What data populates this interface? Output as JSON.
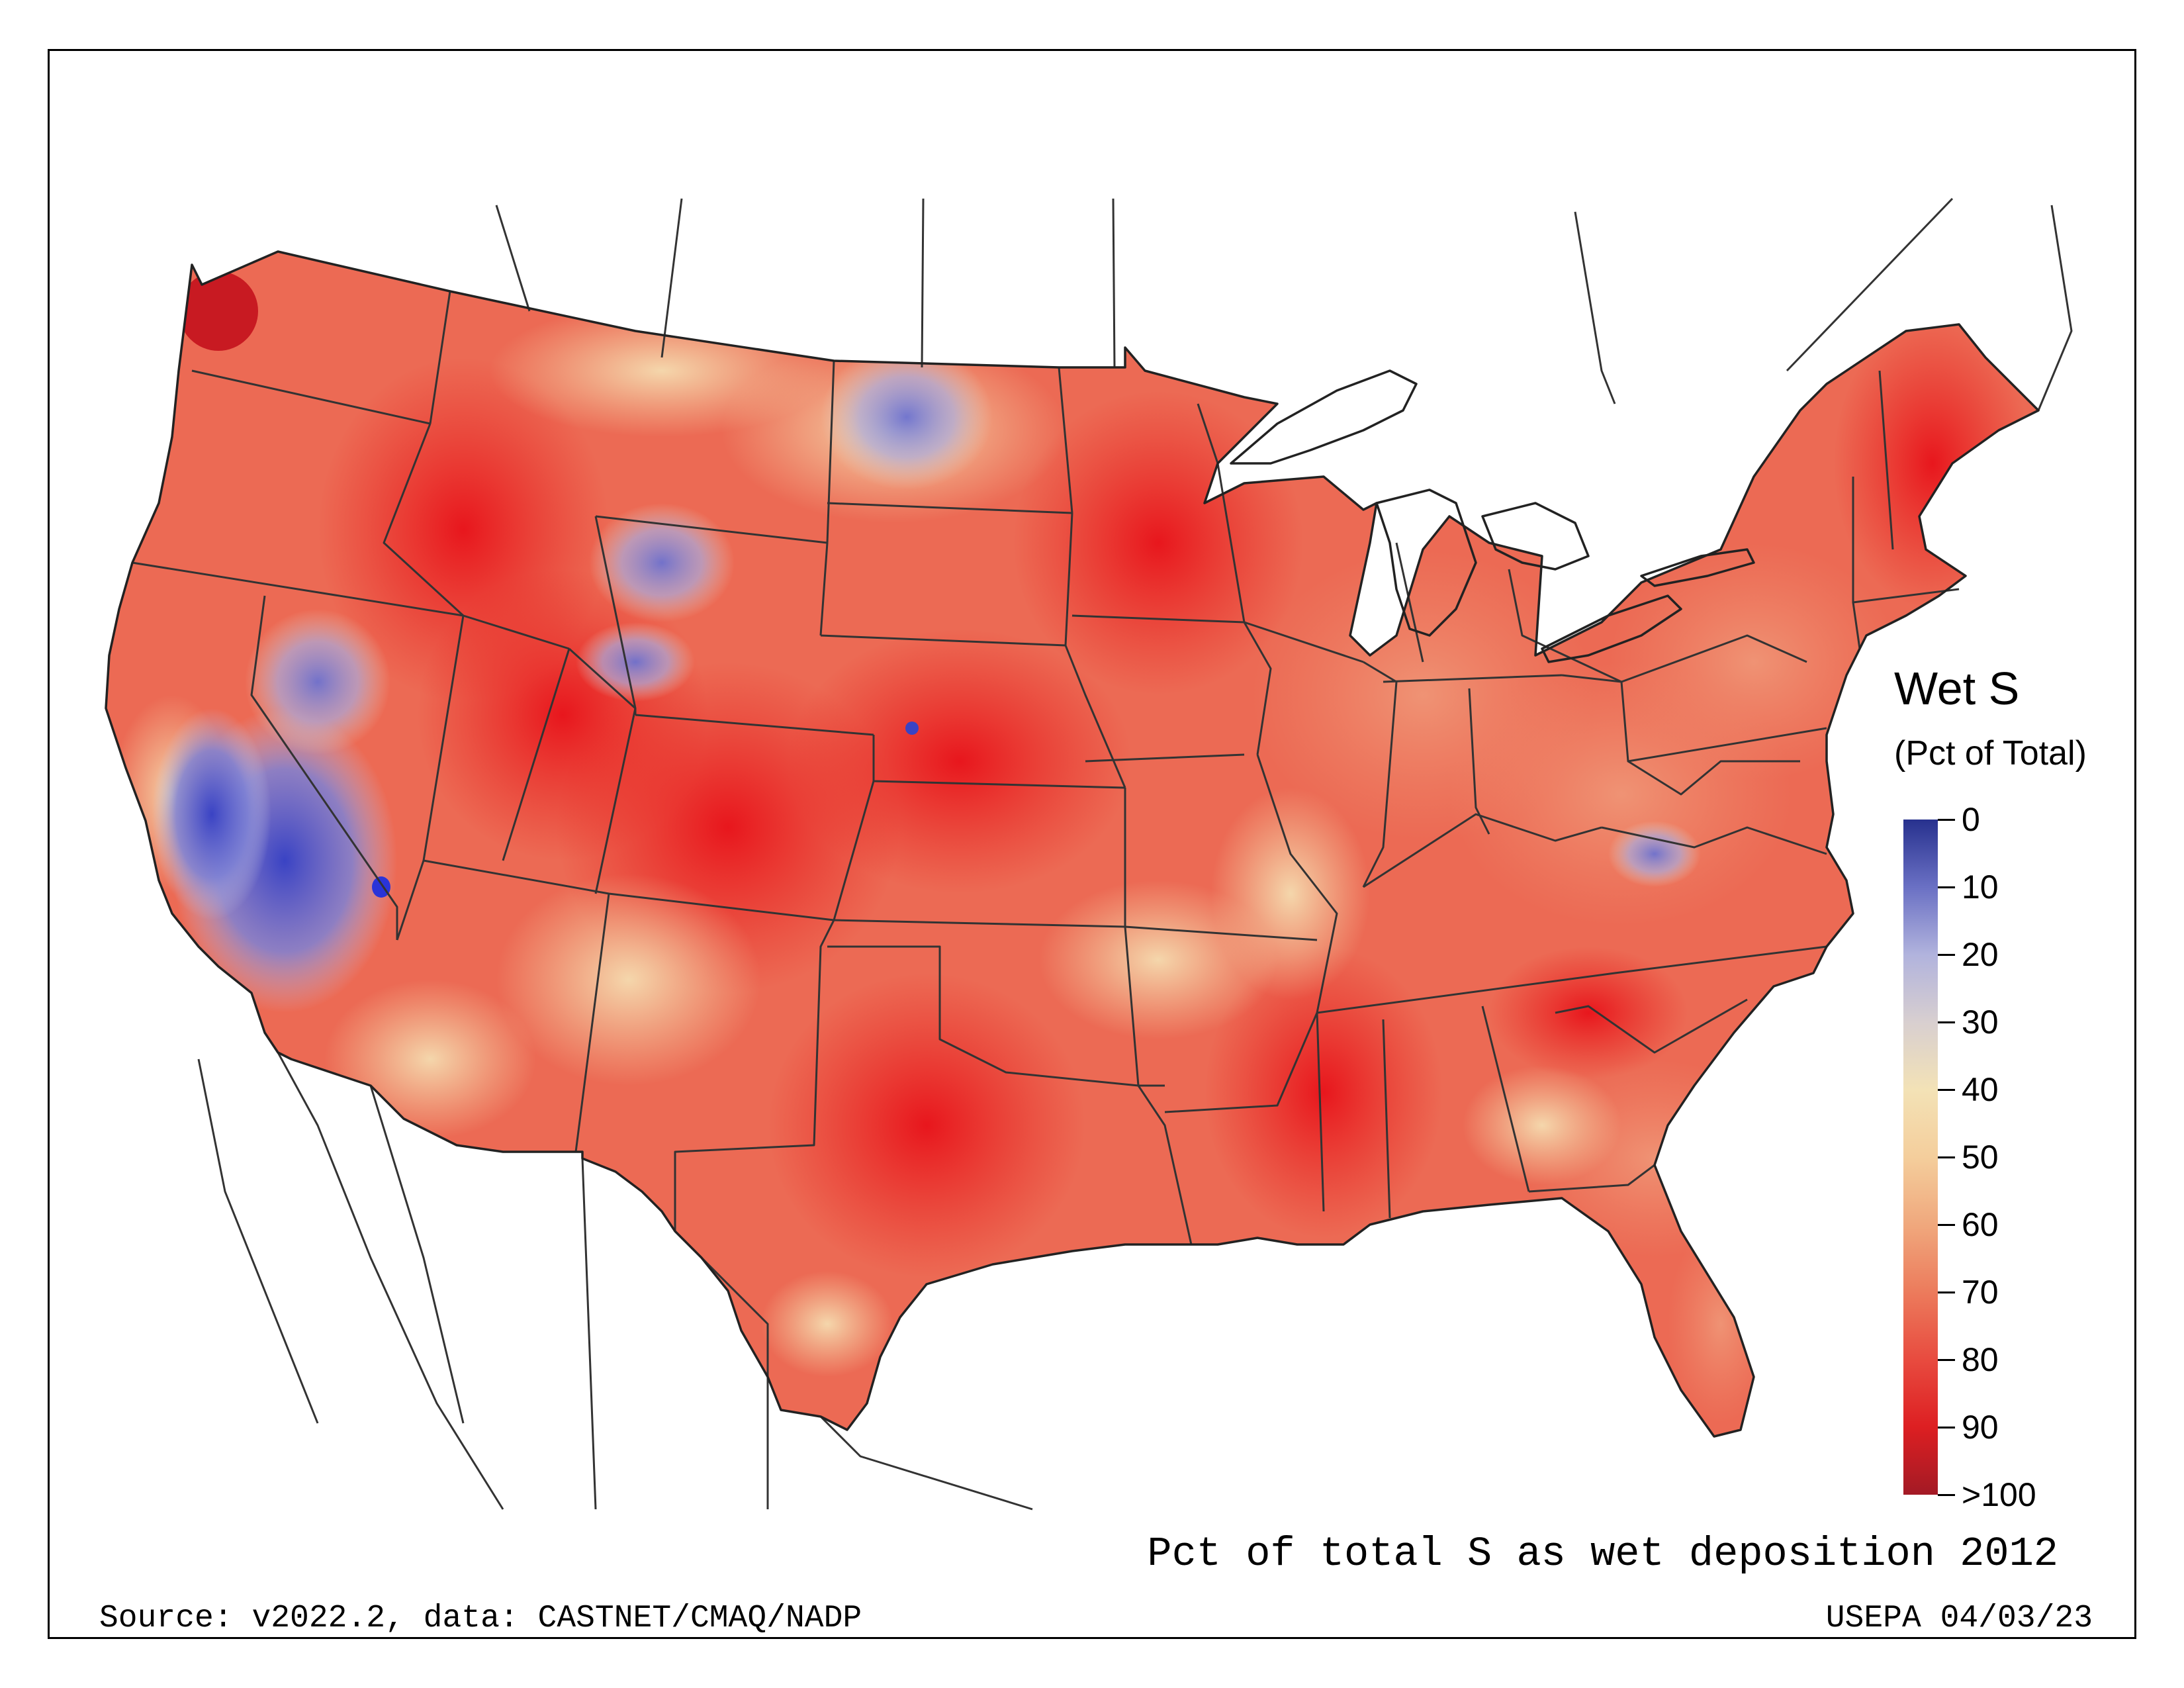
{
  "legend": {
    "title": "Wet S",
    "subtitle": "(Pct of Total)",
    "ticks": [
      "0",
      "10",
      "20",
      "30",
      "40",
      "50",
      "60",
      "70",
      "80",
      "90",
      ">100"
    ]
  },
  "caption": "Pct of total S as wet deposition 2012",
  "source": "Source: v2022.2, data: CASTNET/CMAQ/NADP",
  "stamp": "USEPA 04/03/23",
  "colors": {
    "low_0": "#27318e",
    "mid_50": "#f4ce9c",
    "high_100": "#a31a25"
  }
}
